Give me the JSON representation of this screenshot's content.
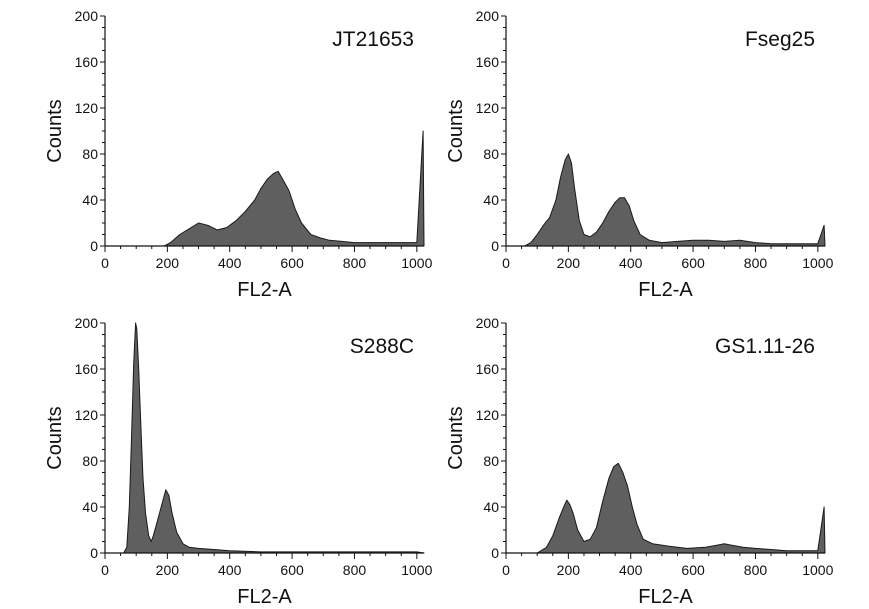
{
  "figure": {
    "colors": {
      "fill": "#5f5f5f",
      "stroke": "#1a1a1a",
      "axis": "#111111"
    }
  },
  "chart_data": [
    {
      "type": "area",
      "label": "JT21653",
      "xlabel": "FL2-A",
      "ylabel": "Counts",
      "xlim": [
        0,
        1023
      ],
      "ylim": [
        0,
        200
      ],
      "xticks": [
        "0",
        "200",
        "400",
        "600",
        "800",
        "1000"
      ],
      "yticks": [
        "0",
        "40",
        "80",
        "120",
        "160",
        "200"
      ],
      "grid": false,
      "x": [
        0,
        190,
        210,
        240,
        270,
        300,
        330,
        360,
        390,
        420,
        450,
        480,
        500,
        520,
        540,
        555,
        570,
        590,
        610,
        630,
        660,
        690,
        720,
        760,
        800,
        850,
        900,
        950,
        1000,
        1020,
        1023
      ],
      "y": [
        0,
        0,
        3,
        10,
        15,
        20,
        18,
        14,
        16,
        22,
        30,
        40,
        50,
        58,
        63,
        65,
        58,
        48,
        32,
        20,
        10,
        7,
        5,
        4,
        3,
        3,
        3,
        3,
        3,
        100,
        0
      ]
    },
    {
      "type": "area",
      "label": "Fseg25",
      "xlabel": "FL2-A",
      "ylabel": "Counts",
      "xlim": [
        0,
        1023
      ],
      "ylim": [
        0,
        200
      ],
      "xticks": [
        "0",
        "200",
        "400",
        "600",
        "800",
        "1000"
      ],
      "yticks": [
        "0",
        "40",
        "80",
        "120",
        "160",
        "200"
      ],
      "grid": false,
      "x": [
        0,
        60,
        80,
        100,
        120,
        140,
        160,
        175,
        190,
        200,
        210,
        220,
        235,
        250,
        270,
        290,
        310,
        330,
        350,
        365,
        380,
        395,
        410,
        430,
        460,
        500,
        550,
        600,
        650,
        700,
        750,
        800,
        850,
        900,
        950,
        1000,
        1020,
        1023
      ],
      "y": [
        0,
        0,
        3,
        10,
        18,
        25,
        40,
        60,
        75,
        80,
        72,
        50,
        22,
        10,
        8,
        12,
        20,
        30,
        38,
        42,
        42,
        35,
        22,
        10,
        5,
        3,
        4,
        5,
        5,
        4,
        5,
        3,
        2,
        2,
        2,
        2,
        18,
        0
      ]
    },
    {
      "type": "area",
      "label": "S288C",
      "xlabel": "FL2-A",
      "ylabel": "Counts",
      "xlim": [
        0,
        1023
      ],
      "ylim": [
        0,
        200
      ],
      "xticks": [
        "0",
        "200",
        "400",
        "600",
        "800",
        "1000"
      ],
      "yticks": [
        "0",
        "40",
        "80",
        "120",
        "160",
        "200"
      ],
      "grid": false,
      "x": [
        0,
        60,
        70,
        78,
        85,
        92,
        98,
        102,
        108,
        115,
        122,
        130,
        140,
        148,
        155,
        165,
        175,
        185,
        195,
        205,
        215,
        230,
        250,
        270,
        300,
        350,
        400,
        500,
        600,
        700,
        800,
        900,
        1000,
        1023
      ],
      "y": [
        0,
        0,
        5,
        40,
        100,
        165,
        200,
        195,
        160,
        110,
        65,
        35,
        15,
        10,
        15,
        25,
        35,
        45,
        55,
        50,
        35,
        18,
        8,
        5,
        4,
        3,
        2,
        1,
        1,
        1,
        1,
        1,
        1,
        0
      ]
    },
    {
      "type": "area",
      "label": "GS1.11-26",
      "xlabel": "FL2-A",
      "ylabel": "Counts",
      "xlim": [
        0,
        1023
      ],
      "ylim": [
        0,
        200
      ],
      "xticks": [
        "0",
        "200",
        "400",
        "600",
        "800",
        "1000"
      ],
      "yticks": [
        "0",
        "40",
        "80",
        "120",
        "160",
        "200"
      ],
      "grid": false,
      "x": [
        0,
        100,
        130,
        150,
        170,
        185,
        195,
        205,
        215,
        230,
        250,
        270,
        290,
        310,
        330,
        345,
        360,
        375,
        390,
        405,
        420,
        440,
        470,
        520,
        580,
        640,
        680,
        700,
        720,
        760,
        800,
        850,
        900,
        950,
        1000,
        1020,
        1023
      ],
      "y": [
        0,
        0,
        5,
        15,
        30,
        40,
        46,
        42,
        35,
        20,
        10,
        12,
        22,
        45,
        65,
        75,
        78,
        70,
        58,
        40,
        25,
        12,
        8,
        6,
        4,
        5,
        7,
        8,
        7,
        5,
        4,
        3,
        2,
        2,
        2,
        40,
        0
      ]
    }
  ]
}
